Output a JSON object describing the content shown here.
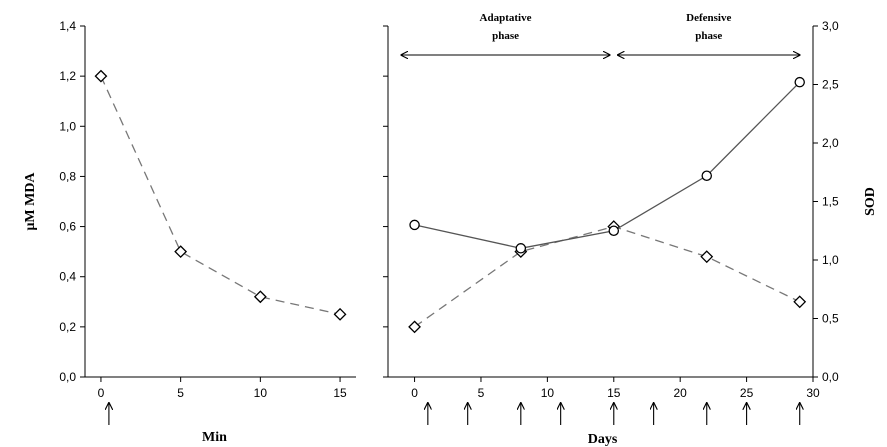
{
  "chart_data": [
    {
      "type": "line",
      "xlabel": "Min",
      "ylabel": "μM MDA",
      "xlim": [
        -1,
        16
      ],
      "ylim": [
        0,
        1.4
      ],
      "x_ticks": [
        0,
        5,
        10,
        15
      ],
      "x_tick_labels": [
        "0",
        "5",
        "10",
        "15"
      ],
      "y_ticks": [
        0,
        0.2,
        0.4,
        0.6,
        0.8,
        1.0,
        1.2,
        1.4
      ],
      "y_tick_labels": [
        "0,0",
        "0,2",
        "0,4",
        "0,6",
        "0,8",
        "1,0",
        "1,2",
        "1,4"
      ],
      "series": [
        {
          "marker": "diamond",
          "line_style": "dashed",
          "x": [
            0,
            5,
            10,
            15
          ],
          "y": [
            1.2,
            0.5,
            0.32,
            0.25
          ]
        }
      ],
      "arrows_at_x": [
        0.5
      ],
      "grid": false
    },
    {
      "type": "line",
      "xlabel": "Days",
      "ylabel_right": "SOD",
      "xlim": [
        -2,
        30
      ],
      "ylim_left": [
        0,
        1.4
      ],
      "ylim_right": [
        0,
        3.0
      ],
      "x_ticks": [
        0,
        5,
        10,
        15,
        20,
        25,
        30
      ],
      "x_tick_labels": [
        "0",
        "5",
        "10",
        "15",
        "20",
        "25",
        "30"
      ],
      "y_ticks_left": [
        0,
        0.2,
        0.4,
        0.6,
        0.8,
        1.0,
        1.2,
        1.4
      ],
      "y_ticks_right": [
        0,
        0.5,
        1.0,
        1.5,
        2.0,
        2.5,
        3.0
      ],
      "y_tick_labels_right": [
        "0,0",
        "0,5",
        "1,0",
        "1,5",
        "2,0",
        "2,5",
        "3,0"
      ],
      "series": [
        {
          "axis": "left",
          "marker": "diamond",
          "line_style": "dashed",
          "x": [
            0,
            8,
            15,
            22,
            29
          ],
          "y": [
            0.2,
            0.5,
            0.6,
            0.48,
            0.3
          ]
        },
        {
          "axis": "right",
          "marker": "circle",
          "line_style": "solid",
          "x": [
            0,
            8,
            15,
            22,
            29
          ],
          "y": [
            1.3,
            1.1,
            1.25,
            1.72,
            2.52
          ]
        }
      ],
      "phases": [
        {
          "line1": "Adaptative",
          "line2": "phase",
          "from_x": -1,
          "to_x": 15
        },
        {
          "line1": "Defensive",
          "line2": "phase",
          "from_x": 15,
          "to_x": 29
        }
      ],
      "arrows_at_x": [
        1,
        4,
        8,
        11,
        15,
        18,
        22,
        25,
        29
      ],
      "grid": false
    }
  ]
}
